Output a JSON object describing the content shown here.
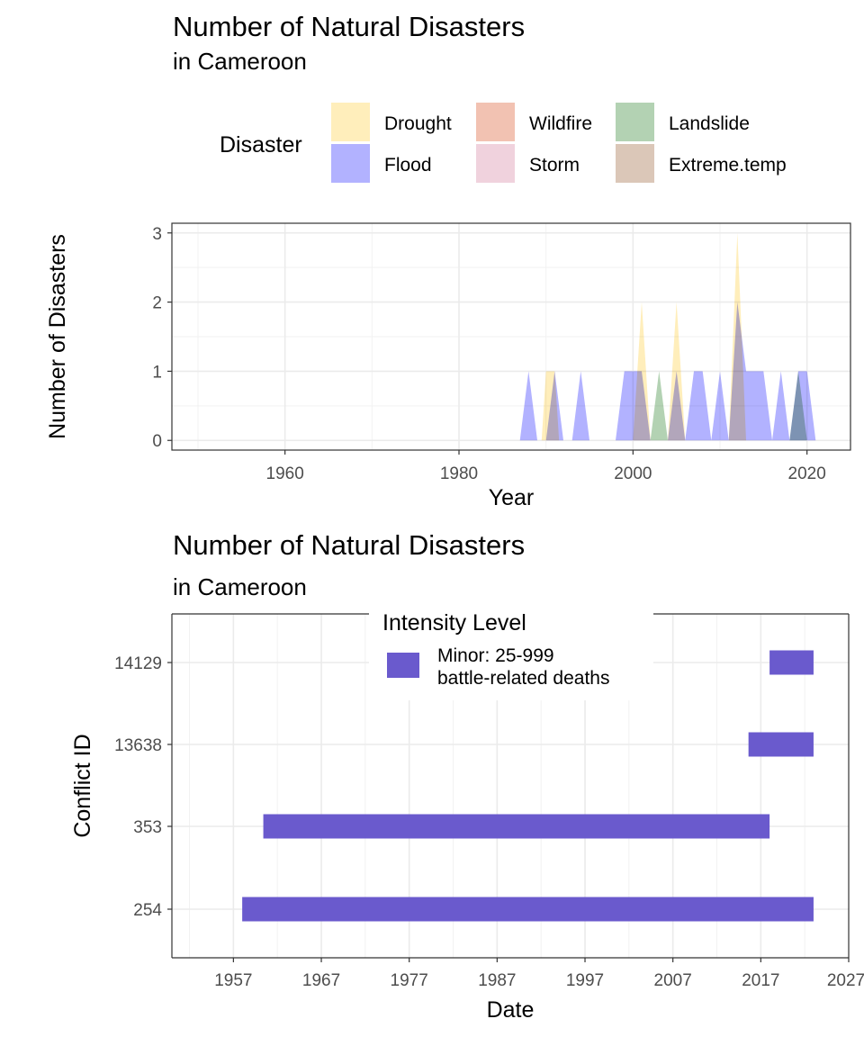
{
  "chart_data": [
    {
      "type": "area",
      "title": "Number of Natural Disasters",
      "subtitle": "in Cameroon",
      "xlabel": "Year",
      "ylabel": "Number of Disasters",
      "xlim": [
        1947,
        2025
      ],
      "ylim": [
        -0.14,
        3.14
      ],
      "x_ticks": [
        1960,
        1980,
        2000,
        2020
      ],
      "y_ticks": [
        0,
        1,
        2,
        3
      ],
      "grid": true,
      "legend": {
        "title": "Disaster",
        "placement": "top",
        "entries": [
          {
            "name": "Drought",
            "color": "#ffeebb"
          },
          {
            "name": "Flood",
            "color": "#b2b2ff"
          },
          {
            "name": "Wildfire",
            "color": "#f2c2b2"
          },
          {
            "name": "Storm",
            "color": "#f0d2dd"
          },
          {
            "name": "Landslide",
            "color": "#b3d2b3"
          },
          {
            "name": "Extreme.temp",
            "color": "#dbc7b8"
          }
        ]
      },
      "series": [
        {
          "name": "Drought",
          "color": "#ffeebb",
          "points": [
            [
              1989.5,
              0
            ],
            [
              1990,
              1
            ],
            [
              1991,
              1
            ],
            [
              1991.5,
              0
            ],
            [
              2000,
              0
            ],
            [
              2001,
              2
            ],
            [
              2002,
              0
            ],
            [
              2004,
              0
            ],
            [
              2005,
              2
            ],
            [
              2006,
              0
            ],
            [
              2011,
              0
            ],
            [
              2012,
              3
            ],
            [
              2013,
              0
            ]
          ]
        },
        {
          "name": "Flood",
          "color": "#b2b2ff",
          "points": [
            [
              1987,
              0
            ],
            [
              1988,
              1
            ],
            [
              1989,
              0
            ],
            [
              1990,
              0
            ],
            [
              1991,
              1
            ],
            [
              1992,
              0
            ],
            [
              1993,
              0
            ],
            [
              1994,
              1
            ],
            [
              1995,
              0
            ],
            [
              1998,
              0
            ],
            [
              1999,
              1
            ],
            [
              2000,
              1
            ],
            [
              2001,
              1
            ],
            [
              2002,
              0
            ],
            [
              2004,
              0
            ],
            [
              2005,
              1
            ],
            [
              2006,
              0
            ],
            [
              2007,
              1
            ],
            [
              2008,
              1
            ],
            [
              2009,
              0
            ],
            [
              2010,
              1
            ],
            [
              2011,
              0
            ],
            [
              2012,
              2
            ],
            [
              2013,
              1
            ],
            [
              2014,
              1
            ],
            [
              2015,
              1
            ],
            [
              2016,
              0
            ],
            [
              2017,
              1
            ],
            [
              2018,
              0
            ],
            [
              2019,
              1
            ],
            [
              2020,
              1
            ],
            [
              2021,
              0
            ]
          ]
        },
        {
          "name": "Landslide",
          "color": "#b3d2b3",
          "points": [
            [
              2002,
              0
            ],
            [
              2003,
              1
            ],
            [
              2004,
              0
            ],
            [
              2018,
              0
            ],
            [
              2019,
              1
            ],
            [
              2020,
              0
            ]
          ]
        }
      ]
    },
    {
      "type": "bar",
      "orientation": "horizontal",
      "title": "Number of Natural Disasters",
      "subtitle": "in Cameroon",
      "xlabel": "Date",
      "ylabel": "Conflict ID",
      "xlim": [
        1950,
        2027
      ],
      "x_ticks": [
        1957,
        1967,
        1977,
        1987,
        1997,
        2007,
        2017,
        2027
      ],
      "categories": [
        "254",
        "353",
        "13638",
        "14129"
      ],
      "grid": true,
      "legend": {
        "title": "Intensity Level",
        "placement": "top-inside",
        "entries": [
          {
            "name": "Minor: 25-999\nbattle-related deaths",
            "color": "#6a5acd"
          }
        ]
      },
      "bars": [
        {
          "id": "254",
          "start": 1958.0,
          "end": 2023.0,
          "color": "#6a5acd"
        },
        {
          "id": "353",
          "start": 1960.4,
          "end": 2018.0,
          "color": "#6a5acd"
        },
        {
          "id": "13638",
          "start": 2015.6,
          "end": 2023.0,
          "color": "#6a5acd"
        },
        {
          "id": "14129",
          "start": 2018.0,
          "end": 2023.0,
          "color": "#6a5acd"
        }
      ]
    }
  ]
}
